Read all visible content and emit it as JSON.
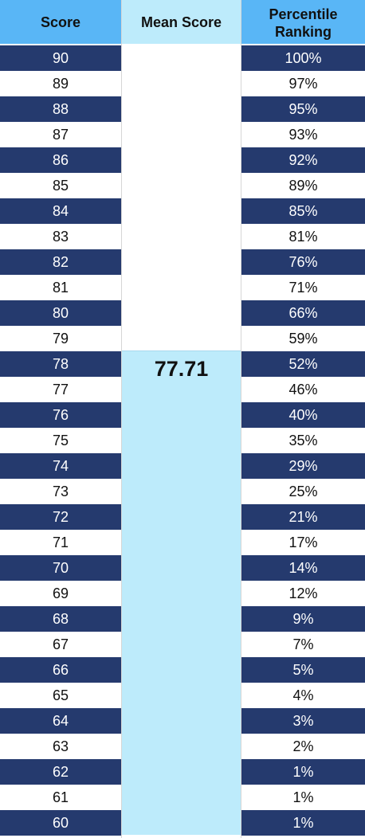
{
  "headers": {
    "score": "Score",
    "mean": "Mean Score",
    "percentile_line1": "Percentile",
    "percentile_line2": "Ranking"
  },
  "mean_score": "77.71",
  "rows": [
    {
      "score": "90",
      "percentile": "100%"
    },
    {
      "score": "89",
      "percentile": "97%"
    },
    {
      "score": "88",
      "percentile": "95%"
    },
    {
      "score": "87",
      "percentile": "93%"
    },
    {
      "score": "86",
      "percentile": "92%"
    },
    {
      "score": "85",
      "percentile": "89%"
    },
    {
      "score": "84",
      "percentile": "85%"
    },
    {
      "score": "83",
      "percentile": "81%"
    },
    {
      "score": "82",
      "percentile": "76%"
    },
    {
      "score": "81",
      "percentile": "71%"
    },
    {
      "score": "80",
      "percentile": "66%"
    },
    {
      "score": "79",
      "percentile": "59%"
    },
    {
      "score": "78",
      "percentile": "52%"
    },
    {
      "score": "77",
      "percentile": "46%"
    },
    {
      "score": "76",
      "percentile": "40%"
    },
    {
      "score": "75",
      "percentile": "35%"
    },
    {
      "score": "74",
      "percentile": "29%"
    },
    {
      "score": "73",
      "percentile": "25%"
    },
    {
      "score": "72",
      "percentile": "21%"
    },
    {
      "score": "71",
      "percentile": "17%"
    },
    {
      "score": "70",
      "percentile": "14%"
    },
    {
      "score": "69",
      "percentile": "12%"
    },
    {
      "score": "68",
      "percentile": "9%"
    },
    {
      "score": "67",
      "percentile": "7%"
    },
    {
      "score": "66",
      "percentile": "5%"
    },
    {
      "score": "65",
      "percentile": "4%"
    },
    {
      "score": "64",
      "percentile": "3%"
    },
    {
      "score": "63",
      "percentile": "2%"
    },
    {
      "score": "62",
      "percentile": "1%"
    },
    {
      "score": "61",
      "percentile": "1%"
    },
    {
      "score": "60",
      "percentile": "1%"
    }
  ],
  "colors": {
    "dark_row": "#253a6e",
    "header_blue": "#59b6f6",
    "mean_light_blue": "#bdebfb"
  }
}
